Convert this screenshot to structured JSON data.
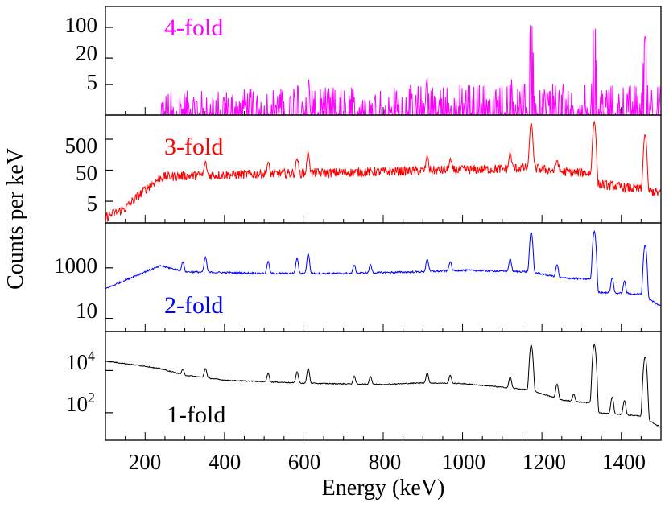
{
  "chart_data": {
    "type": "line",
    "xlabel": "Energy (keV)",
    "ylabel": "Counts per keV",
    "xlim": [
      100,
      1500
    ],
    "xticks": [
      "200",
      "400",
      "600",
      "800",
      "1000",
      "1200",
      "1400"
    ],
    "xtick_values": [
      200,
      400,
      600,
      800,
      1000,
      1200,
      1400
    ],
    "grid": false,
    "panels": [
      {
        "label": "4-fold",
        "color": "#ff00ff",
        "ylim": [
          1,
          300
        ],
        "yticks": [
          "5",
          "20",
          "100"
        ],
        "ytick_values": [
          5,
          20,
          100
        ],
        "baseline": [
          [
            240,
            1.4
          ],
          [
            320,
            1.5
          ],
          [
            500,
            1.7
          ],
          [
            700,
            1.8
          ],
          [
            900,
            2.0
          ],
          [
            1100,
            2.2
          ],
          [
            1480,
            2.0
          ]
        ],
        "peaks": [
          [
            1173,
            150
          ],
          [
            1332,
            160
          ],
          [
            1460,
            60
          ],
          [
            1120,
            4
          ],
          [
            611,
            4
          ],
          [
            583,
            4
          ],
          [
            911,
            4
          ]
        ]
      },
      {
        "label": "3-fold",
        "color": "#ff0000",
        "ylim": [
          1,
          3000
        ],
        "yticks": [
          "5",
          "50",
          "500"
        ],
        "ytick_values": [
          5,
          50,
          500
        ],
        "baseline": [
          [
            100,
            1.5
          ],
          [
            150,
            3
          ],
          [
            200,
            12
          ],
          [
            240,
            30
          ],
          [
            300,
            33
          ],
          [
            500,
            38
          ],
          [
            700,
            42
          ],
          [
            900,
            48
          ],
          [
            1100,
            55
          ],
          [
            1170,
            60
          ],
          [
            1250,
            45
          ],
          [
            1330,
            40
          ],
          [
            1340,
            18
          ],
          [
            1450,
            12
          ],
          [
            1500,
            9
          ]
        ],
        "peaks": [
          [
            1173,
            1600
          ],
          [
            1332,
            1800
          ],
          [
            1460,
            700
          ],
          [
            1120,
            120
          ],
          [
            911,
            90
          ],
          [
            611,
            140
          ],
          [
            583,
            80
          ],
          [
            352,
            55
          ],
          [
            510,
            50
          ],
          [
            969,
            60
          ],
          [
            1238,
            60
          ]
        ]
      },
      {
        "label": "2-fold",
        "color": "#0000ff",
        "ylim": [
          3,
          60000
        ],
        "yticks": [
          "10",
          "1000"
        ],
        "ytick_values": [
          10,
          1000
        ],
        "baseline": [
          [
            100,
            150
          ],
          [
            200,
            700
          ],
          [
            240,
            1200
          ],
          [
            300,
            700
          ],
          [
            500,
            600
          ],
          [
            700,
            600
          ],
          [
            900,
            700
          ],
          [
            1000,
            800
          ],
          [
            1170,
            700
          ],
          [
            1250,
            400
          ],
          [
            1330,
            350
          ],
          [
            1340,
            110
          ],
          [
            1450,
            90
          ],
          [
            1500,
            30
          ]
        ],
        "peaks": [
          [
            1173,
            25000
          ],
          [
            1332,
            28000
          ],
          [
            1460,
            8000
          ],
          [
            1120,
            1500
          ],
          [
            911,
            1500
          ],
          [
            969,
            1000
          ],
          [
            611,
            3000
          ],
          [
            583,
            1800
          ],
          [
            352,
            2000
          ],
          [
            295,
            1000
          ],
          [
            510,
            1200
          ],
          [
            1238,
            900
          ],
          [
            1377,
            300
          ],
          [
            1408,
            200
          ],
          [
            727,
            700
          ],
          [
            768,
            700
          ]
        ]
      },
      {
        "label": "1-fold",
        "color": "#000000",
        "ylim": [
          5,
          700000
        ],
        "yticks": [
          "10^2",
          "10^4"
        ],
        "ytick_values": [
          100,
          10000
        ],
        "baseline": [
          [
            100,
            28000
          ],
          [
            200,
            16000
          ],
          [
            240,
            12000
          ],
          [
            300,
            6000
          ],
          [
            400,
            3500
          ],
          [
            600,
            2500
          ],
          [
            800,
            2200
          ],
          [
            900,
            2600
          ],
          [
            1000,
            2400
          ],
          [
            1120,
            1500
          ],
          [
            1170,
            1200
          ],
          [
            1250,
            400
          ],
          [
            1330,
            280
          ],
          [
            1340,
            100
          ],
          [
            1450,
            70
          ],
          [
            1500,
            20
          ]
        ],
        "peaks": [
          [
            1173,
            160000
          ],
          [
            1332,
            170000
          ],
          [
            1460,
            45000
          ],
          [
            1120,
            3500
          ],
          [
            911,
            5000
          ],
          [
            969,
            3500
          ],
          [
            611,
            10000
          ],
          [
            583,
            6000
          ],
          [
            352,
            8000
          ],
          [
            295,
            5000
          ],
          [
            510,
            4500
          ],
          [
            1238,
            1800
          ],
          [
            1377,
            450
          ],
          [
            1408,
            300
          ],
          [
            727,
            3000
          ],
          [
            768,
            3000
          ],
          [
            1280,
            400
          ]
        ]
      }
    ]
  }
}
